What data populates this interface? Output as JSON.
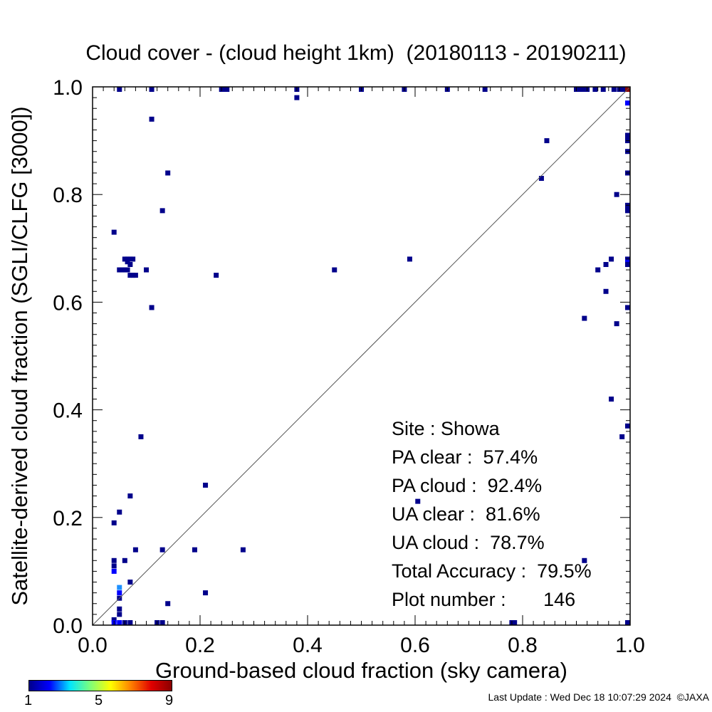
{
  "chart_data": {
    "type": "scatter",
    "title": "Cloud cover - (cloud height 1km)  (20180113 - 20190211)",
    "xlabel": "Ground-based cloud fraction (sky camera)",
    "ylabel": "Satellite-derived cloud fraction (SGLI/CLFG [3000])",
    "xlim": [
      0.0,
      1.0
    ],
    "ylim": [
      0.0,
      1.0
    ],
    "xticks": [
      "0.0",
      "0.2",
      "0.4",
      "0.6",
      "0.8",
      "1.0"
    ],
    "yticks": [
      "0.0",
      "0.2",
      "0.4",
      "0.6",
      "0.8",
      "1.0"
    ],
    "diagonal": "1:1 line",
    "colorbar": {
      "ticks": [
        "1",
        "5",
        "9"
      ],
      "min": 1,
      "max": 9
    },
    "points": [
      {
        "x": 0.05,
        "y": 1.0,
        "c": 1
      },
      {
        "x": 0.11,
        "y": 1.0,
        "c": 1
      },
      {
        "x": 0.24,
        "y": 1.0,
        "c": 1
      },
      {
        "x": 0.245,
        "y": 1.0,
        "c": 1
      },
      {
        "x": 0.25,
        "y": 1.0,
        "c": 1
      },
      {
        "x": 0.38,
        "y": 1.0,
        "c": 1
      },
      {
        "x": 0.5,
        "y": 1.0,
        "c": 1
      },
      {
        "x": 0.58,
        "y": 1.0,
        "c": 1
      },
      {
        "x": 0.66,
        "y": 1.0,
        "c": 1
      },
      {
        "x": 0.73,
        "y": 1.0,
        "c": 1
      },
      {
        "x": 0.9,
        "y": 1.0,
        "c": 1
      },
      {
        "x": 0.905,
        "y": 1.0,
        "c": 1
      },
      {
        "x": 0.91,
        "y": 1.0,
        "c": 1
      },
      {
        "x": 0.915,
        "y": 1.0,
        "c": 1
      },
      {
        "x": 0.92,
        "y": 1.0,
        "c": 1
      },
      {
        "x": 0.935,
        "y": 1.0,
        "c": 1
      },
      {
        "x": 0.95,
        "y": 1.0,
        "c": 1
      },
      {
        "x": 0.97,
        "y": 1.0,
        "c": 1
      },
      {
        "x": 0.98,
        "y": 1.0,
        "c": 1
      },
      {
        "x": 0.985,
        "y": 1.0,
        "c": 1
      },
      {
        "x": 0.99,
        "y": 1.0,
        "c": 1
      },
      {
        "x": 1.0,
        "y": 1.0,
        "c": 9
      },
      {
        "x": 0.38,
        "y": 0.98,
        "c": 1
      },
      {
        "x": 0.11,
        "y": 0.94,
        "c": 1
      },
      {
        "x": 1.0,
        "y": 0.97,
        "c": 2
      },
      {
        "x": 0.845,
        "y": 0.9,
        "c": 1
      },
      {
        "x": 1.0,
        "y": 0.91,
        "c": 1
      },
      {
        "x": 1.0,
        "y": 0.905,
        "c": 1
      },
      {
        "x": 1.0,
        "y": 0.9,
        "c": 1
      },
      {
        "x": 1.0,
        "y": 0.88,
        "c": 1
      },
      {
        "x": 0.14,
        "y": 0.84,
        "c": 1
      },
      {
        "x": 1.0,
        "y": 0.84,
        "c": 1
      },
      {
        "x": 0.835,
        "y": 0.83,
        "c": 1
      },
      {
        "x": 0.975,
        "y": 0.8,
        "c": 1
      },
      {
        "x": 1.0,
        "y": 0.78,
        "c": 1
      },
      {
        "x": 1.0,
        "y": 0.775,
        "c": 1
      },
      {
        "x": 1.0,
        "y": 0.77,
        "c": 1
      },
      {
        "x": 0.13,
        "y": 0.77,
        "c": 1
      },
      {
        "x": 0.04,
        "y": 0.73,
        "c": 1
      },
      {
        "x": 0.06,
        "y": 0.68,
        "c": 1
      },
      {
        "x": 0.065,
        "y": 0.68,
        "c": 1
      },
      {
        "x": 0.07,
        "y": 0.68,
        "c": 1
      },
      {
        "x": 0.075,
        "y": 0.68,
        "c": 1
      },
      {
        "x": 0.065,
        "y": 0.675,
        "c": 1
      },
      {
        "x": 0.07,
        "y": 0.67,
        "c": 1
      },
      {
        "x": 0.05,
        "y": 0.66,
        "c": 1
      },
      {
        "x": 0.055,
        "y": 0.66,
        "c": 1
      },
      {
        "x": 0.06,
        "y": 0.66,
        "c": 1
      },
      {
        "x": 0.065,
        "y": 0.66,
        "c": 1
      },
      {
        "x": 0.1,
        "y": 0.66,
        "c": 1
      },
      {
        "x": 0.07,
        "y": 0.65,
        "c": 1
      },
      {
        "x": 0.075,
        "y": 0.65,
        "c": 1
      },
      {
        "x": 0.08,
        "y": 0.65,
        "c": 1
      },
      {
        "x": 0.23,
        "y": 0.65,
        "c": 1
      },
      {
        "x": 0.45,
        "y": 0.66,
        "c": 1
      },
      {
        "x": 0.59,
        "y": 0.68,
        "c": 1
      },
      {
        "x": 0.965,
        "y": 0.68,
        "c": 1
      },
      {
        "x": 1.0,
        "y": 0.68,
        "c": 1
      },
      {
        "x": 1.0,
        "y": 0.675,
        "c": 2
      },
      {
        "x": 1.0,
        "y": 0.67,
        "c": 1
      },
      {
        "x": 0.955,
        "y": 0.67,
        "c": 1
      },
      {
        "x": 0.94,
        "y": 0.66,
        "c": 1
      },
      {
        "x": 0.955,
        "y": 0.62,
        "c": 1
      },
      {
        "x": 0.11,
        "y": 0.59,
        "c": 1
      },
      {
        "x": 1.0,
        "y": 0.59,
        "c": 1
      },
      {
        "x": 0.915,
        "y": 0.57,
        "c": 1
      },
      {
        "x": 0.975,
        "y": 0.56,
        "c": 1
      },
      {
        "x": 0.965,
        "y": 0.42,
        "c": 1
      },
      {
        "x": 1.0,
        "y": 0.37,
        "c": 1
      },
      {
        "x": 0.09,
        "y": 0.35,
        "c": 1
      },
      {
        "x": 0.985,
        "y": 0.35,
        "c": 1
      },
      {
        "x": 0.21,
        "y": 0.26,
        "c": 1
      },
      {
        "x": 0.07,
        "y": 0.24,
        "c": 1
      },
      {
        "x": 0.605,
        "y": 0.23,
        "c": 1
      },
      {
        "x": 0.05,
        "y": 0.21,
        "c": 1
      },
      {
        "x": 0.04,
        "y": 0.19,
        "c": 1
      },
      {
        "x": 0.08,
        "y": 0.14,
        "c": 1
      },
      {
        "x": 0.13,
        "y": 0.14,
        "c": 1
      },
      {
        "x": 0.19,
        "y": 0.14,
        "c": 1
      },
      {
        "x": 0.28,
        "y": 0.14,
        "c": 1
      },
      {
        "x": 0.04,
        "y": 0.12,
        "c": 1
      },
      {
        "x": 0.04,
        "y": 0.11,
        "c": 1
      },
      {
        "x": 0.04,
        "y": 0.1,
        "c": 2
      },
      {
        "x": 0.06,
        "y": 0.12,
        "c": 1
      },
      {
        "x": 0.915,
        "y": 0.12,
        "c": 1
      },
      {
        "x": 0.07,
        "y": 0.08,
        "c": 1
      },
      {
        "x": 0.05,
        "y": 0.07,
        "c": 3
      },
      {
        "x": 0.05,
        "y": 0.06,
        "c": 2
      },
      {
        "x": 0.05,
        "y": 0.05,
        "c": 1
      },
      {
        "x": 0.21,
        "y": 0.06,
        "c": 1
      },
      {
        "x": 0.14,
        "y": 0.04,
        "c": 1
      },
      {
        "x": 0.05,
        "y": 0.03,
        "c": 1
      },
      {
        "x": 0.05,
        "y": 0.02,
        "c": 1
      },
      {
        "x": 0.04,
        "y": 0.01,
        "c": 1
      },
      {
        "x": 0.04,
        "y": 0.0,
        "c": 2
      },
      {
        "x": 0.05,
        "y": 0.0,
        "c": 2
      },
      {
        "x": 0.06,
        "y": 0.0,
        "c": 1
      },
      {
        "x": 0.07,
        "y": 0.0,
        "c": 1
      },
      {
        "x": 0.12,
        "y": 0.0,
        "c": 1
      },
      {
        "x": 0.13,
        "y": 0.0,
        "c": 1
      },
      {
        "x": 0.78,
        "y": 0.0,
        "c": 1
      },
      {
        "x": 0.785,
        "y": 0.0,
        "c": 1
      },
      {
        "x": 1.0,
        "y": 0.0,
        "c": 1
      }
    ]
  },
  "stats": {
    "site": "Site : Showa",
    "pa_clear": "PA clear :  57.4%",
    "pa_cloud": "PA cloud :  92.4%",
    "ua_clear": "UA clear :  81.6%",
    "ua_cloud": "UA cloud :  78.7%",
    "total_accuracy": "Total Accuracy :  79.5%",
    "plot_number": "Plot number :       146"
  },
  "footer": "Last Update : Wed Dec 18 10:07:29 2024  ©JAXA",
  "colors": {
    "axis": "#000000",
    "diagonal": "#555555",
    "min_color": "#00008b",
    "max_color": "#8b0000"
  }
}
